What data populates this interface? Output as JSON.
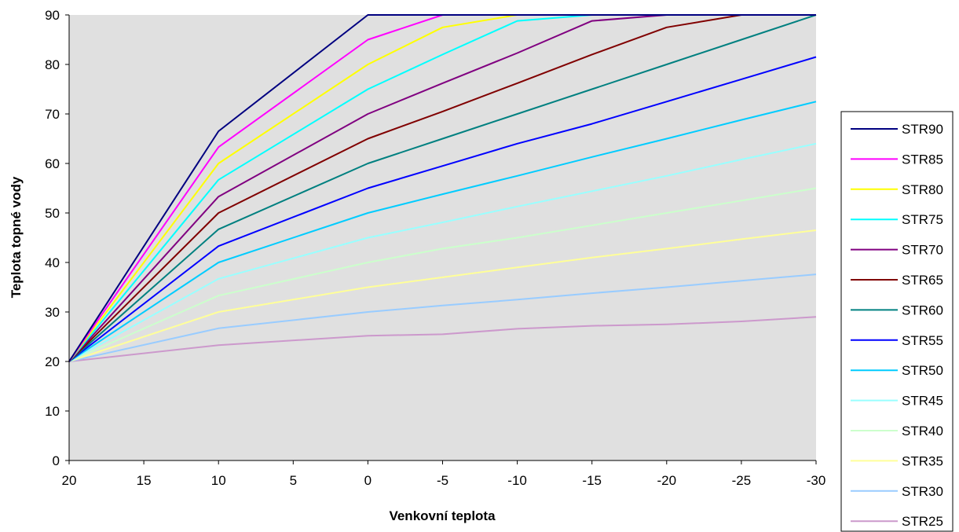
{
  "chart_data": {
    "type": "line",
    "title": "",
    "xlabel": "Venkovní teplota",
    "ylabel": "Teplota topné vody",
    "x": [
      20,
      10,
      0,
      -5,
      -10,
      -15,
      -20,
      -25,
      -30
    ],
    "xlim": [
      20,
      -30
    ],
    "ylim": [
      0,
      90
    ],
    "x_ticks": [
      "20",
      "15",
      "10",
      "5",
      "0",
      "-5",
      "-10",
      "-15",
      "-20",
      "-25",
      "-30"
    ],
    "y_ticks": [
      "0",
      "10",
      "20",
      "30",
      "40",
      "50",
      "60",
      "70",
      "80",
      "90"
    ],
    "plot_background": "#e0e0e0",
    "legend_position": "right",
    "series": [
      {
        "name": "STR90",
        "color": "#000080",
        "values": [
          20,
          66.5,
          90,
          90,
          90,
          90,
          90,
          90,
          90
        ]
      },
      {
        "name": "STR85",
        "color": "#ff00ff",
        "values": [
          20,
          63.3,
          85,
          90,
          90,
          90,
          90,
          90,
          90
        ]
      },
      {
        "name": "STR80",
        "color": "#ffff00",
        "values": [
          20,
          60,
          80,
          87.5,
          90,
          90,
          90,
          90,
          90
        ]
      },
      {
        "name": "STR75",
        "color": "#00ffff",
        "values": [
          20,
          56.7,
          75,
          82,
          88.8,
          90,
          90,
          90,
          90
        ]
      },
      {
        "name": "STR70",
        "color": "#800080",
        "values": [
          20,
          53.3,
          70,
          76.2,
          82.3,
          88.8,
          90,
          90,
          90
        ]
      },
      {
        "name": "STR65",
        "color": "#800000",
        "values": [
          20,
          50,
          65,
          70.5,
          76.2,
          82,
          87.5,
          90,
          90
        ]
      },
      {
        "name": "STR60",
        "color": "#008080",
        "values": [
          20,
          46.7,
          60,
          65,
          70,
          75,
          80,
          85,
          90
        ]
      },
      {
        "name": "STR55",
        "color": "#0000ff",
        "values": [
          20,
          43.3,
          55,
          59.5,
          64,
          68,
          72.5,
          77,
          81.5
        ]
      },
      {
        "name": "STR50",
        "color": "#00ccff",
        "values": [
          20,
          40,
          50,
          53.8,
          57.5,
          61.3,
          65,
          68.8,
          72.5
        ]
      },
      {
        "name": "STR45",
        "color": "#99ffff",
        "values": [
          20,
          36.7,
          45,
          48.1,
          51.3,
          54.4,
          57.5,
          60.8,
          64
        ]
      },
      {
        "name": "STR40",
        "color": "#ccffcc",
        "values": [
          20,
          33.3,
          40,
          42.8,
          45,
          47.5,
          50,
          52.5,
          55
        ]
      },
      {
        "name": "STR35",
        "color": "#ffff99",
        "values": [
          20,
          30,
          35,
          37,
          39,
          41,
          42.8,
          44.7,
          46.5
        ]
      },
      {
        "name": "STR30",
        "color": "#99ccff",
        "values": [
          20,
          26.7,
          30,
          31.3,
          32.5,
          33.8,
          35,
          36.3,
          37.6
        ]
      },
      {
        "name": "STR25",
        "color": "#cc99cc",
        "values": [
          20,
          23.3,
          25.2,
          25.5,
          26.6,
          27.2,
          27.5,
          28.1,
          29
        ]
      }
    ]
  }
}
